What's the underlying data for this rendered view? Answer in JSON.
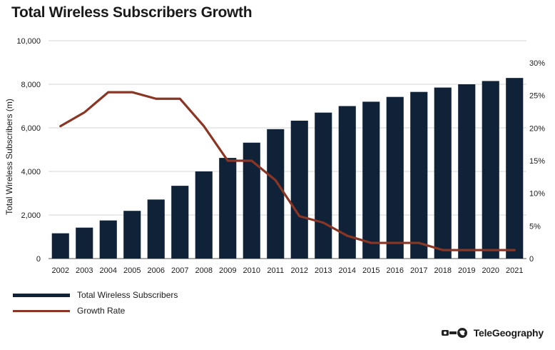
{
  "title": "Total Wireless Subscribers Growth",
  "brand": {
    "name": "TeleGeography",
    "logo_icon": "telegeography-logo-icon"
  },
  "colors": {
    "bar": "#0f2238",
    "line": "#8b3524",
    "grid": "#d6d6d6",
    "axis": "#555555"
  },
  "legend": {
    "position": "bottom-left",
    "items": [
      {
        "label": "Total Wireless Subscribers",
        "type": "bar"
      },
      {
        "label": "Growth Rate",
        "type": "line"
      }
    ]
  },
  "chart_data": {
    "type": "bar",
    "categories": [
      "2002",
      "2003",
      "2004",
      "2005",
      "2006",
      "2007",
      "2008",
      "2009",
      "2010",
      "2011",
      "2012",
      "2013",
      "2014",
      "2015",
      "2016",
      "2017",
      "2018",
      "2019",
      "2020",
      "2021"
    ],
    "ylabel": "Total Wireless Subscribers (m)",
    "ylim": [
      0,
      10000
    ],
    "yticks": [
      "0",
      "2,000",
      "4,000",
      "6,000",
      "8,000",
      "10,000"
    ],
    "y2lim": [
      0,
      30
    ],
    "y2ticks": [
      "0",
      "5%",
      "10%",
      "15%",
      "20%",
      "25%",
      "30%"
    ],
    "grid": true,
    "series": [
      {
        "name": "Total Wireless Subscribers",
        "kind": "bar",
        "axis": "left",
        "values": [
          1160,
          1420,
          1750,
          2190,
          2710,
          3340,
          4000,
          4620,
          5320,
          5940,
          6330,
          6700,
          7000,
          7200,
          7420,
          7650,
          7850,
          8000,
          8150,
          8290
        ]
      },
      {
        "name": "Growth Rate",
        "kind": "line",
        "axis": "right",
        "values": [
          20.3,
          22.4,
          25.5,
          25.5,
          24.5,
          24.5,
          20.3,
          15.0,
          15.0,
          12.0,
          6.5,
          5.5,
          3.5,
          2.4,
          2.4,
          2.4,
          1.3,
          1.3,
          1.3,
          1.3
        ]
      }
    ]
  }
}
